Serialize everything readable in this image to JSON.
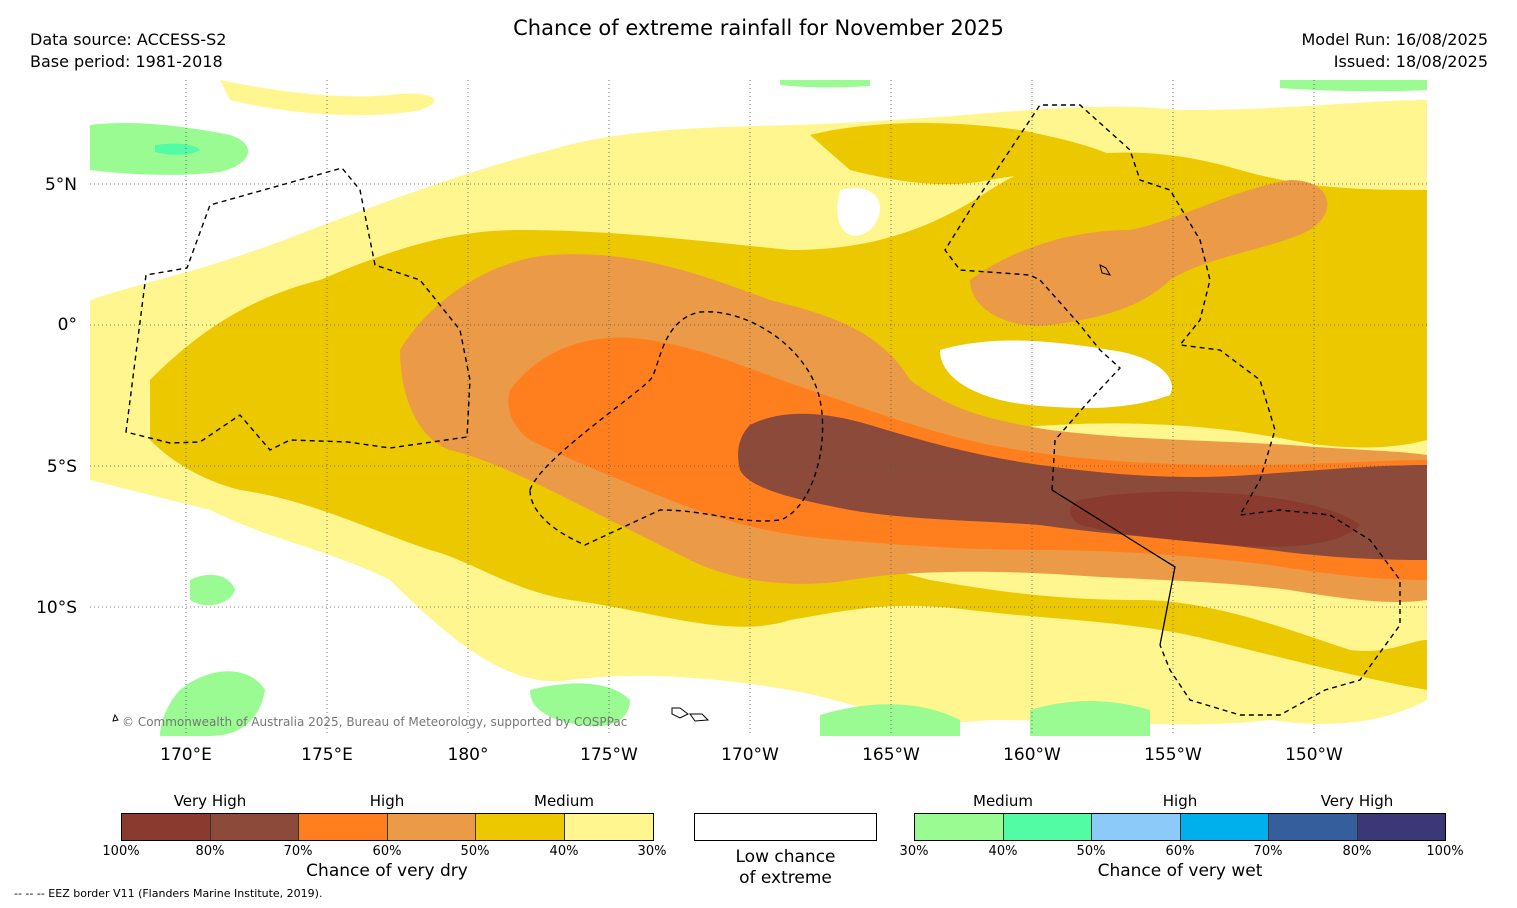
{
  "header": {
    "title": "Chance of extreme rainfall for November 2025",
    "data_source": "Data source: ACCESS-S2",
    "base_period": "Base period: 1981-2018",
    "model_run": "Model Run: 16/08/2025",
    "issued": "Issued: 18/08/2025"
  },
  "map": {
    "lat_labels": [
      "5°N",
      "0°",
      "5°S",
      "10°S"
    ],
    "lon_labels": [
      "170°E",
      "175°E",
      "180°",
      "175°W",
      "170°W",
      "165°W",
      "160°W",
      "155°W",
      "150°W"
    ],
    "copyright": "© Commonwealth of Australia 2025, Bureau of Meteorology, supported by COSPPac"
  },
  "legend": {
    "dry": {
      "categories": [
        "Very High",
        "High",
        "Medium"
      ],
      "colors": [
        "#8b3a2f",
        "#8b4a3a",
        "#ff7f1f",
        "#eb9a48",
        "#ecc800",
        "#fff68f"
      ],
      "ticks": [
        "100%",
        "80%",
        "70%",
        "60%",
        "50%",
        "40%",
        "30%"
      ],
      "caption": "Chance of very dry"
    },
    "low": {
      "caption_line1": "Low chance",
      "caption_line2": "of extreme"
    },
    "wet": {
      "categories": [
        "Medium",
        "High",
        "Very High"
      ],
      "colors": [
        "#9afb92",
        "#52fca4",
        "#8ccbf9",
        "#00b0ec",
        "#345e9c",
        "#3c3878"
      ],
      "ticks": [
        "30%",
        "40%",
        "50%",
        "60%",
        "70%",
        "80%",
        "100%"
      ],
      "caption": "Chance of very wet"
    },
    "eez_note": "-- -- -- EEZ border V11 (Flanders Marine Institute, 2019)."
  }
}
